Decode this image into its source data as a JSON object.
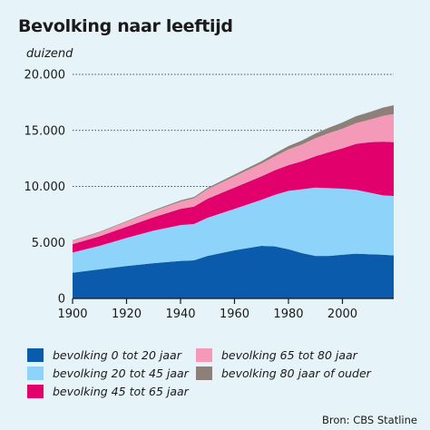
{
  "title": "Bevolking naar leeftijd",
  "unit_label": "duizend",
  "source": "Bron: CBS Statline",
  "chart_data": {
    "type": "area",
    "stacked": true,
    "title": "Bevolking naar leeftijd",
    "ylabel": "duizend",
    "xlim": [
      1900,
      2019
    ],
    "ylim": [
      0,
      20000
    ],
    "yticks": [
      0,
      5000,
      10000,
      15000,
      20000
    ],
    "ytick_labels": [
      "0",
      "5.000",
      "10.000",
      "15.000",
      "20.000"
    ],
    "xticks": [
      1900,
      1920,
      1940,
      1960,
      1980,
      2000
    ],
    "xtick_labels": [
      "1900",
      "1920",
      "1940",
      "1960",
      "1980",
      "2000"
    ],
    "grid": "horizontal",
    "legend_position": "bottom",
    "x": [
      1900,
      1910,
      1920,
      1930,
      1940,
      1945,
      1950,
      1960,
      1970,
      1975,
      1980,
      1985,
      1990,
      1995,
      2000,
      2005,
      2010,
      2015,
      2019
    ],
    "series": [
      {
        "name": "bevolking 0 tot 20 jaar",
        "color": "#0a5bac",
        "values": [
          2300,
          2600,
          2900,
          3150,
          3350,
          3400,
          3800,
          4300,
          4700,
          4650,
          4400,
          4050,
          3800,
          3800,
          3900,
          4000,
          3950,
          3900,
          3850
        ]
      },
      {
        "name": "bevolking 20 tot 45 jaar",
        "color": "#8ed4fa",
        "values": [
          1800,
          2100,
          2500,
          2900,
          3200,
          3250,
          3400,
          3700,
          4100,
          4600,
          5200,
          5700,
          6100,
          6050,
          5900,
          5700,
          5500,
          5300,
          5300
        ]
      },
      {
        "name": "bevolking 45 tot 65 jaar",
        "color": "#e2006d",
        "values": [
          750,
          850,
          1000,
          1200,
          1450,
          1550,
          1700,
          1900,
          2100,
          2200,
          2300,
          2500,
          2800,
          3200,
          3600,
          4100,
          4500,
          4800,
          4800
        ]
      },
      {
        "name": "bevolking 65 tot 80 jaar",
        "color": "#f49ab8",
        "values": [
          300,
          350,
          450,
          550,
          650,
          750,
          850,
          1000,
          1150,
          1250,
          1400,
          1500,
          1600,
          1700,
          1750,
          1850,
          2000,
          2300,
          2500
        ]
      },
      {
        "name": "bevolking 80 jaar of ouder",
        "color": "#8e8079",
        "values": [
          40,
          50,
          60,
          80,
          100,
          110,
          120,
          160,
          200,
          250,
          300,
          350,
          420,
          500,
          560,
          620,
          680,
          740,
          800
        ]
      }
    ]
  }
}
